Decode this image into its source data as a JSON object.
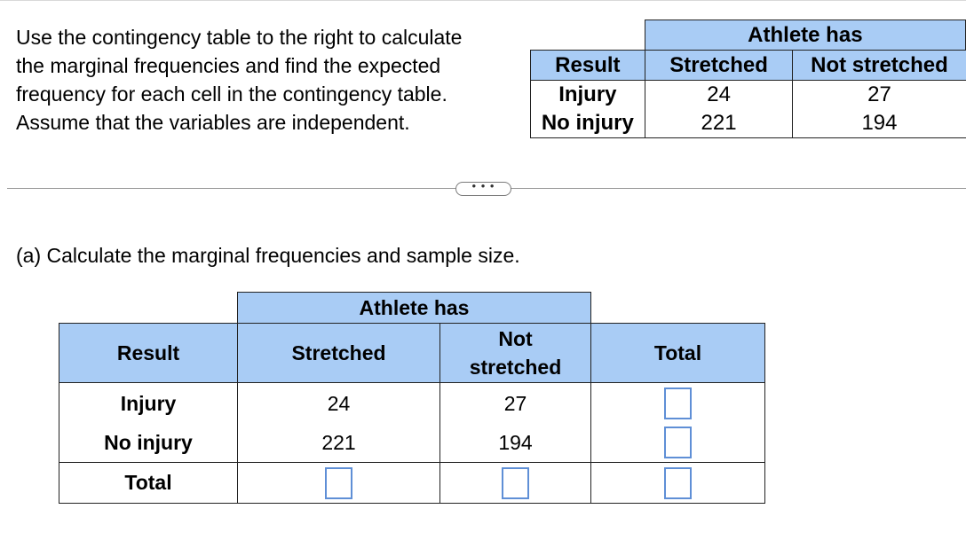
{
  "instructions": {
    "lines": [
      "Use the contingency table to the right to calculate",
      "the marginal frequencies and find the expected",
      "frequency for each cell in the contingency table.",
      "Assume that the variables are independent."
    ]
  },
  "reference_table": {
    "group_header": "Athlete has",
    "row_header": "Result",
    "columns": [
      "Stretched",
      "Not stretched"
    ],
    "rows": [
      {
        "label": "Injury",
        "values": [
          "24",
          "27"
        ]
      },
      {
        "label": "No injury",
        "values": [
          "221",
          "194"
        ]
      }
    ]
  },
  "separator": {
    "more_label": "• • •"
  },
  "part_a": {
    "prompt": "(a) Calculate the marginal frequencies and sample size.",
    "table": {
      "group_header": "Athlete has",
      "row_header": "Result",
      "col_stretched": "Stretched",
      "col_not_line1": "Not",
      "col_not_line2": "stretched",
      "col_total": "Total",
      "row_injury": "Injury",
      "row_no_injury": "No injury",
      "row_total": "Total",
      "injury_stretched": "24",
      "injury_not": "27",
      "no_injury_stretched": "221",
      "no_injury_not": "194",
      "answers": {
        "injury_total": "",
        "no_injury_total": "",
        "total_stretched": "",
        "total_not": "",
        "grand_total": ""
      }
    }
  },
  "colors": {
    "header_blue": "#a9ccf5",
    "box_border": "#5f8fd6"
  }
}
